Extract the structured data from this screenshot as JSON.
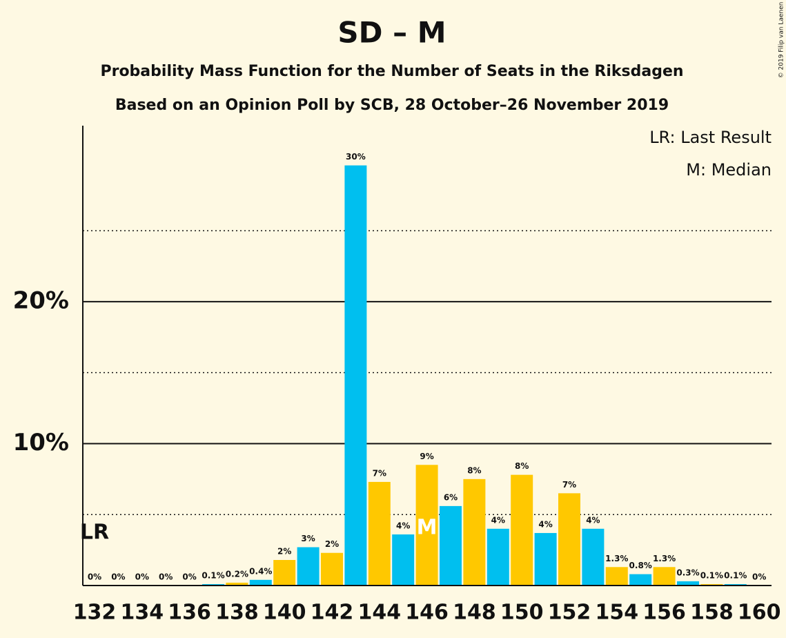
{
  "chart_data": {
    "type": "bar",
    "title": "SD – M",
    "subtitle": "Probability Mass Function for the Number of Seats in the Riksdagen",
    "subtitle2": "Based on an Opinion Poll by SCB, 28 October–26 November 2019",
    "credit": "© 2019 Filip van Laenen",
    "legend": [
      "LR: Last Result",
      "M: Median"
    ],
    "lr_label": "LR",
    "last_result": 132,
    "median_label": "M",
    "median": 146,
    "categories": [
      132,
      null,
      134,
      null,
      136,
      null,
      138,
      null,
      140,
      null,
      142,
      null,
      144,
      null,
      146,
      null,
      148,
      null,
      150,
      null,
      152,
      null,
      154,
      null,
      156,
      null,
      158,
      null,
      160
    ],
    "values": [
      0,
      0,
      0,
      0,
      0,
      0.1,
      0.2,
      0.4,
      1.8,
      2.7,
      2.3,
      29.6,
      7.3,
      3.6,
      8.5,
      5.6,
      7.5,
      4.0,
      7.8,
      3.7,
      6.5,
      4.0,
      1.3,
      0.8,
      1.3,
      0.3,
      0.1,
      0.1,
      0
    ],
    "value_labels": [
      "0%",
      "0%",
      "0%",
      "0%",
      "0%",
      "0.1%",
      "0.2%",
      "0.4%",
      "2%",
      "3%",
      "2%",
      "30%",
      "7%",
      "4%",
      "9%",
      "6%",
      "8%",
      "4%",
      "8%",
      "4%",
      "7%",
      "4%",
      "1.3%",
      "0.8%",
      "1.3%",
      "0.3%",
      "0.1%",
      "0.1%",
      "0%"
    ],
    "colors": [
      "#ffc800",
      "#00bfef",
      "#ffc800",
      "#00bfef",
      "#ffc800",
      "#00bfef",
      "#ffc800",
      "#00bfef",
      "#ffc800",
      "#00bfef",
      "#ffc800",
      "#00bfef",
      "#ffc800",
      "#00bfef",
      "#ffc800",
      "#00bfef",
      "#ffc800",
      "#00bfef",
      "#ffc800",
      "#00bfef",
      "#ffc800",
      "#00bfef",
      "#ffc800",
      "#00bfef",
      "#ffc800",
      "#00bfef",
      "#ffc800",
      "#00bfef",
      "#ffc800"
    ],
    "ylim": [
      0,
      32.4
    ],
    "yticks": [
      {
        "value": 10,
        "label": "10%"
      },
      {
        "value": 20,
        "label": "20%"
      }
    ],
    "minor_yticks": [
      5,
      15,
      25
    ],
    "grid": true
  }
}
